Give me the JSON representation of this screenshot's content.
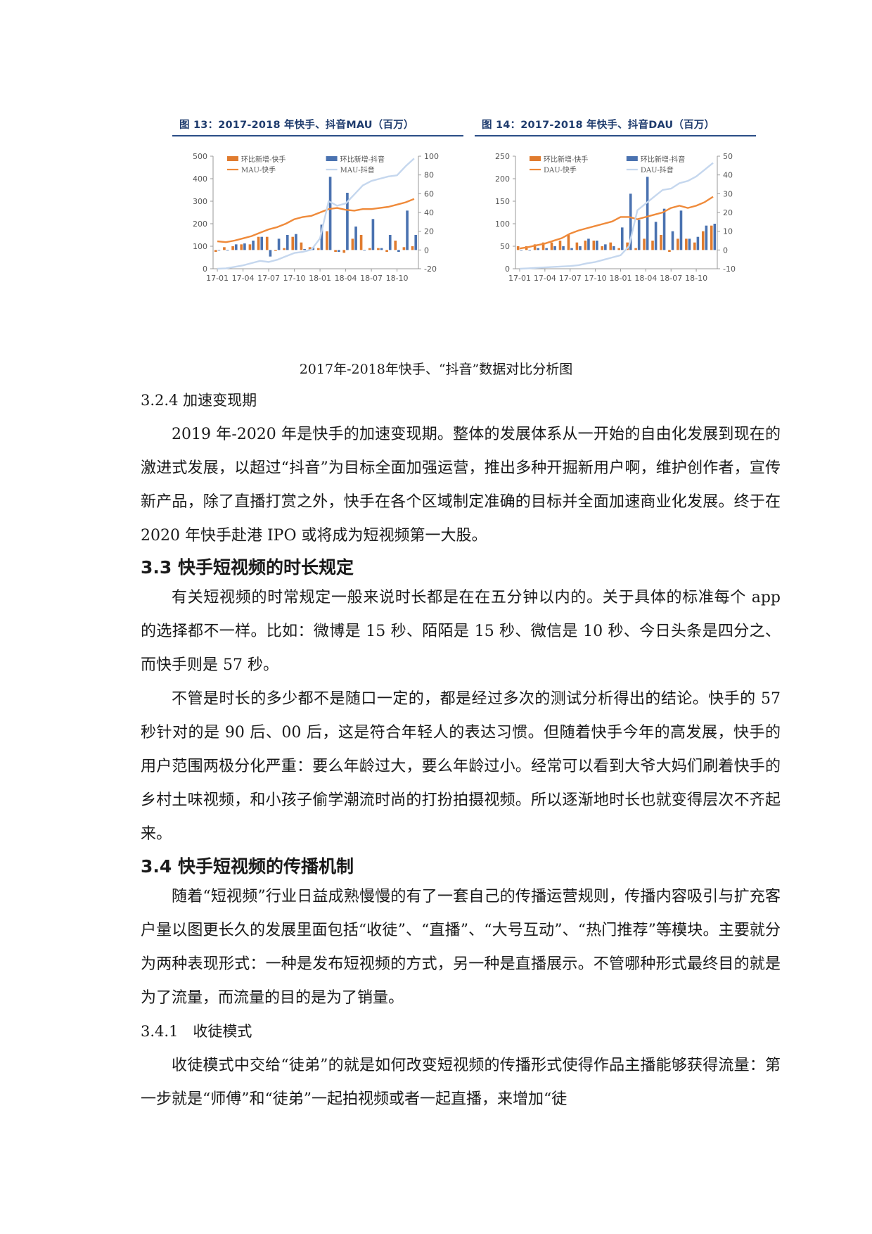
{
  "figures": [
    {
      "title": "图 13：2017-2018 年快手、抖音MAU（百万）",
      "chart_data": {
        "type": "bar+line",
        "categories": [
          "17-01",
          "17-02",
          "17-03",
          "17-04",
          "17-05",
          "17-06",
          "17-07",
          "17-08",
          "17-09",
          "17-10",
          "17-11",
          "17-12",
          "18-01",
          "18-02",
          "18-03",
          "18-04",
          "18-05",
          "18-06",
          "18-07",
          "18-08",
          "18-09",
          "18-10",
          "18-11",
          "18-12"
        ],
        "x_tick_labels": [
          "17-01",
          "17-04",
          "17-07",
          "17-10",
          "18-01",
          "18-04",
          "18-07",
          "18-10"
        ],
        "left_axis": {
          "ticks": [
            0,
            100,
            200,
            300,
            400,
            500
          ],
          "ylim": [
            0,
            500
          ]
        },
        "right_axis": {
          "ticks": [
            -20,
            0,
            20,
            40,
            60,
            80,
            100
          ],
          "ylim": [
            -20,
            100
          ]
        },
        "series": [
          {
            "name": "环比新增-快手",
            "kind": "bar",
            "axis": "right",
            "color": "#e07b2e",
            "values": [
              -2,
              3,
              4,
              6,
              6,
              14,
              14,
              -1,
              2,
              14,
              8,
              3,
              2,
              20,
              -2,
              -3,
              12,
              16,
              2,
              2,
              -2,
              10,
              3,
              4
            ]
          },
          {
            "name": "环比新增-抖音",
            "kind": "bar",
            "axis": "right",
            "color": "#4a72b0",
            "values": [
              0,
              0,
              6,
              7,
              10,
              14,
              -7,
              12,
              16,
              17,
              1,
              3,
              27,
              78,
              -2,
              61,
              25,
              0,
              33,
              2,
              16,
              -2,
              42,
              16
            ]
          },
          {
            "name": "MAU-快手",
            "kind": "line",
            "axis": "left",
            "color": "#ef8a3a",
            "values": [
              122,
              118,
              125,
              135,
              145,
              160,
              175,
              185,
              200,
              220,
              230,
              235,
              250,
              265,
              270,
              262,
              258,
              265,
              265,
              270,
              275,
              285,
              295,
              310
            ]
          },
          {
            "name": "MAU-抖音",
            "kind": "line",
            "axis": "left",
            "color": "#c5d7ee",
            "values": [
              0,
              2,
              8,
              15,
              25,
              35,
              30,
              40,
              55,
              70,
              75,
              85,
              135,
              300,
              280,
              290,
              330,
              370,
              390,
              400,
              410,
              415,
              455,
              490
            ]
          }
        ]
      }
    },
    {
      "title": "图 14：2017-2018 年快手、抖音DAU（百万）",
      "chart_data": {
        "type": "bar+line",
        "categories": [
          "17-01",
          "17-02",
          "17-03",
          "17-04",
          "17-05",
          "17-06",
          "17-07",
          "17-08",
          "17-09",
          "17-10",
          "17-11",
          "17-12",
          "18-01",
          "18-02",
          "18-03",
          "18-04",
          "18-05",
          "18-06",
          "18-07",
          "18-08",
          "18-09",
          "18-10",
          "18-11",
          "18-12"
        ],
        "x_tick_labels": [
          "17-01",
          "17-04",
          "17-07",
          "17-10",
          "18-01",
          "18-04",
          "18-07",
          "18-10"
        ],
        "left_axis": {
          "ticks": [
            0,
            50,
            100,
            150,
            200,
            250
          ],
          "ylim": [
            0,
            250
          ]
        },
        "right_axis": {
          "ticks": [
            -10,
            0,
            10,
            20,
            30,
            40,
            50
          ],
          "ylim": [
            -10,
            50
          ]
        },
        "series": [
          {
            "name": "环比新增-快手",
            "kind": "bar",
            "axis": "right",
            "color": "#e07b2e",
            "values": [
              2,
              2,
              3,
              4,
              4,
              5,
              8,
              4,
              5,
              5,
              2,
              4,
              1,
              4,
              1,
              6,
              5,
              8,
              -1,
              6,
              6,
              4,
              10,
              13
            ]
          },
          {
            "name": "环比新增-抖音",
            "kind": "bar",
            "axis": "right",
            "color": "#4a72b0",
            "values": [
              0,
              0,
              1,
              1,
              2,
              2,
              1,
              2,
              6,
              5,
              3,
              2,
              12,
              30,
              16,
              39,
              15,
              22,
              10,
              21,
              6,
              7,
              13,
              14
            ]
          },
          {
            "name": "DAU-快手",
            "kind": "line",
            "axis": "left",
            "color": "#ef8a3a",
            "values": [
              45,
              48,
              52,
              56,
              62,
              68,
              78,
              85,
              90,
              95,
              100,
              105,
              115,
              115,
              110,
              115,
              120,
              125,
              135,
              140,
              135,
              140,
              148,
              160
            ]
          },
          {
            "name": "DAU-抖音",
            "kind": "line",
            "axis": "left",
            "color": "#c5d7ee",
            "values": [
              0,
              1,
              2,
              3,
              4,
              5,
              6,
              8,
              12,
              15,
              20,
              25,
              30,
              50,
              130,
              145,
              160,
              175,
              178,
              190,
              195,
              205,
              220,
              235
            ]
          }
        ]
      }
    }
  ],
  "caption": "2017年-2018年快手、“抖音”数据对比分析图",
  "section_324": {
    "heading": "3.2.4 加速变现期",
    "p1": "2019 年-2020 年是快手的加速变现期。整体的发展体系从一开始的自由化发展到现在的激进式发展，以超过“抖音”为目标全面加强运营，推出多种开掘新用户啊，维护创作者，宣传新产品，除了直播打赏之外，快手在各个区域制定准确的目标并全面加速商业化发展。终于在 2020 年快手赴港 IPO 或将成为短视频第一大股。"
  },
  "section_33": {
    "heading": "3.3 快手短视频的时长规定",
    "p1": "有关短视频的时常规定一般来说时长都是在在五分钟以内的。关于具体的标准每个 app 的选择都不一样。比如：微博是 15 秒、陌陌是 15 秒、微信是 10 秒、今日头条是四分之、而快手则是 57 秒。",
    "p2": "不管是时长的多少都不是随口一定的，都是经过多次的测试分析得出的结论。快手的 57 秒针对的是 90 后、00 后，这是符合年轻人的表达习惯。但随着快手今年的高发展，快手的用户范围两极分化严重：要么年龄过大，要么年龄过小。经常可以看到大爷大妈们刷着快手的乡村土味视频，和小孩子偷学潮流时尚的打扮拍摄视频。所以逐渐地时长也就变得层次不齐起来。"
  },
  "section_34": {
    "heading": "3.4 快手短视频的传播机制",
    "p1": "随着“短视频”行业日益成熟慢慢的有了一套自己的传播运营规则，传播内容吸引与扩充客户量以图更长久的发展里面包括“收徒”、“直播”、“大号互动”、“热门推荐”等模块。主要就分为两种表现形式：一种是发布短视频的方式，另一种是直播展示。不管哪种形式最终目的就是为了流量，而流量的目的是为了销量。"
  },
  "section_341": {
    "heading": "3.4.1　收徒模式",
    "p1": "收徒模式中交给“徒弟”的就是如何改变短视频的传播形式使得作品主播能够获得流量：第一步就是“师傅”和“徒弟”一起拍视频或者一起直播，来增加“徒"
  }
}
